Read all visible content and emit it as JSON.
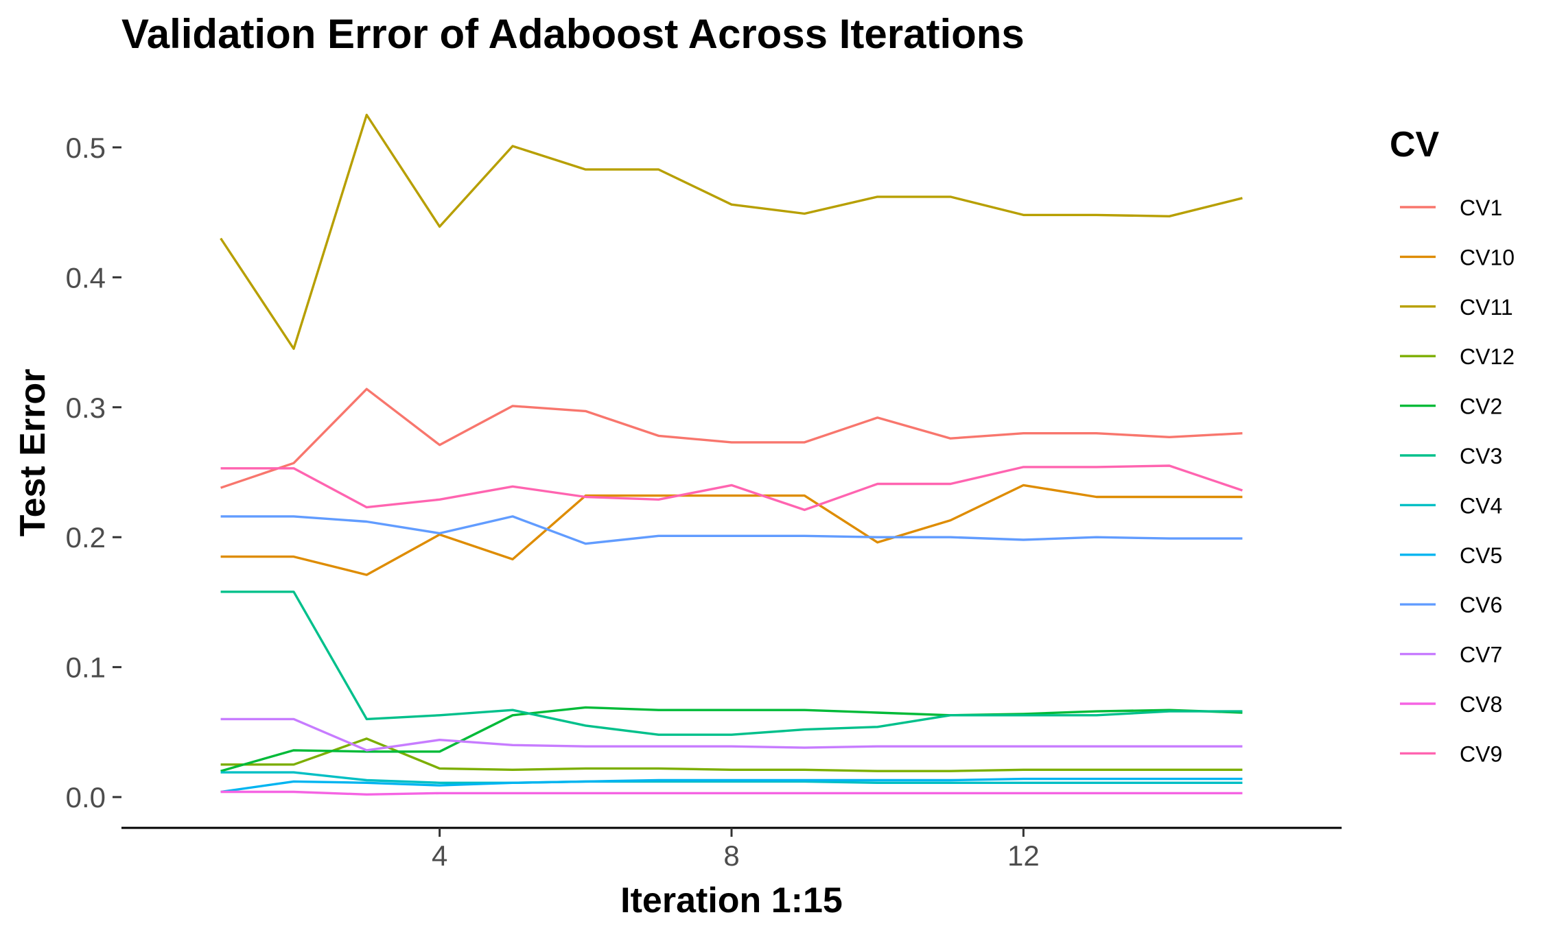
{
  "chart_data": {
    "type": "line",
    "title": "Validation Error of Adaboost Across Iterations",
    "xlabel": "Iteration 1:15",
    "ylabel": "Test Error",
    "x": [
      1,
      2,
      3,
      4,
      5,
      6,
      7,
      8,
      9,
      10,
      11,
      12,
      13,
      14,
      15
    ],
    "xlim": [
      -0.36,
      16.36
    ],
    "ylim": [
      -0.0237,
      0.5448
    ],
    "x_ticks": [
      4,
      8,
      12
    ],
    "x_tick_labels": [
      "4",
      "8",
      "12"
    ],
    "y_ticks": [
      0.0,
      0.1,
      0.2,
      0.3,
      0.4,
      0.5
    ],
    "y_tick_labels": [
      "0.0",
      "0.1",
      "0.2",
      "0.3",
      "0.4",
      "0.5"
    ],
    "grid": false,
    "legend": {
      "title": "CV",
      "position": "right"
    },
    "series": [
      {
        "name": "CV1",
        "color": "#F8766D",
        "values": [
          0.238,
          0.257,
          0.314,
          0.271,
          0.301,
          0.297,
          0.278,
          0.273,
          0.273,
          0.292,
          0.276,
          0.28,
          0.28,
          0.277,
          0.28
        ]
      },
      {
        "name": "CV10",
        "color": "#DE8C00",
        "values": [
          0.185,
          0.185,
          0.171,
          0.202,
          0.183,
          0.232,
          0.232,
          0.232,
          0.232,
          0.196,
          0.213,
          0.24,
          0.231,
          0.231,
          0.231
        ]
      },
      {
        "name": "CV11",
        "color": "#B79F00",
        "values": [
          0.43,
          0.345,
          0.525,
          0.439,
          0.501,
          0.483,
          0.483,
          0.456,
          0.449,
          0.462,
          0.462,
          0.448,
          0.448,
          0.447,
          0.461
        ]
      },
      {
        "name": "CV12",
        "color": "#7CAE00",
        "values": [
          0.025,
          0.025,
          0.045,
          0.022,
          0.021,
          0.022,
          0.022,
          0.021,
          0.021,
          0.02,
          0.02,
          0.021,
          0.021,
          0.021,
          0.021
        ]
      },
      {
        "name": "CV2",
        "color": "#00BA38",
        "values": [
          0.02,
          0.036,
          0.035,
          0.035,
          0.063,
          0.069,
          0.067,
          0.067,
          0.067,
          0.065,
          0.063,
          0.064,
          0.066,
          0.067,
          0.065
        ]
      },
      {
        "name": "CV3",
        "color": "#00C08B",
        "values": [
          0.158,
          0.158,
          0.06,
          0.063,
          0.067,
          0.055,
          0.048,
          0.048,
          0.052,
          0.054,
          0.063,
          0.063,
          0.063,
          0.066,
          0.066
        ]
      },
      {
        "name": "CV4",
        "color": "#00BFC4",
        "values": [
          0.019,
          0.019,
          0.013,
          0.011,
          0.011,
          0.012,
          0.012,
          0.012,
          0.012,
          0.011,
          0.011,
          0.011,
          0.011,
          0.011,
          0.011
        ]
      },
      {
        "name": "CV5",
        "color": "#00B4F0",
        "values": [
          0.004,
          0.012,
          0.011,
          0.009,
          0.011,
          0.012,
          0.013,
          0.013,
          0.013,
          0.013,
          0.013,
          0.014,
          0.014,
          0.014,
          0.014
        ]
      },
      {
        "name": "CV6",
        "color": "#619CFF",
        "values": [
          0.216,
          0.216,
          0.212,
          0.203,
          0.216,
          0.195,
          0.201,
          0.201,
          0.201,
          0.2,
          0.2,
          0.198,
          0.2,
          0.199,
          0.199
        ]
      },
      {
        "name": "CV7",
        "color": "#C77CFF",
        "values": [
          0.06,
          0.06,
          0.036,
          0.044,
          0.04,
          0.039,
          0.039,
          0.039,
          0.038,
          0.039,
          0.039,
          0.039,
          0.039,
          0.039,
          0.039
        ]
      },
      {
        "name": "CV8",
        "color": "#F564E3",
        "values": [
          0.004,
          0.004,
          0.002,
          0.003,
          0.003,
          0.003,
          0.003,
          0.003,
          0.003,
          0.003,
          0.003,
          0.003,
          0.003,
          0.003,
          0.003
        ]
      },
      {
        "name": "CV9",
        "color": "#FF64B0",
        "values": [
          0.253,
          0.253,
          0.223,
          0.229,
          0.239,
          0.231,
          0.229,
          0.24,
          0.221,
          0.241,
          0.241,
          0.254,
          0.254,
          0.255,
          0.236
        ]
      }
    ]
  }
}
